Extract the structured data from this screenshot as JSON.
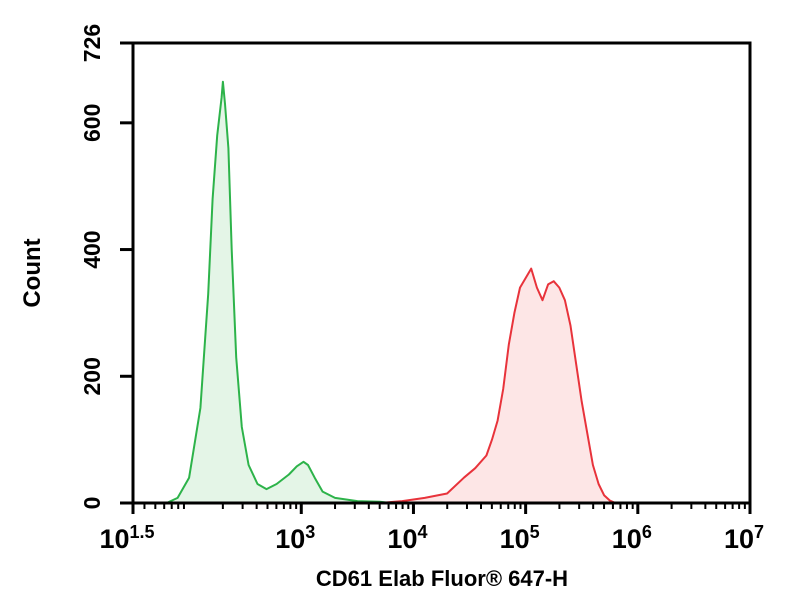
{
  "chart_data": {
    "type": "area",
    "xlabel": "CD61 Elab Fluor® 647-H",
    "ylabel": "Count",
    "x_scale": "log",
    "xlim": [
      31.62,
      10000000
    ],
    "ylim": [
      0,
      726
    ],
    "y_ticks": [
      "0",
      "200",
      "400",
      "600",
      "726"
    ],
    "x_ticks": [
      {
        "base": "10",
        "exp": "1.5"
      },
      {
        "base": "10",
        "exp": "3"
      },
      {
        "base": "10",
        "exp": "4"
      },
      {
        "base": "10",
        "exp": "5"
      },
      {
        "base": "10",
        "exp": "6"
      },
      {
        "base": "10",
        "exp": "7"
      }
    ],
    "grid": false,
    "series": [
      {
        "color": "#2db34a",
        "fill": "#e4f5e7",
        "points": [
          [
            63,
            0
          ],
          [
            79,
            8
          ],
          [
            100,
            40
          ],
          [
            126,
            150
          ],
          [
            148,
            330
          ],
          [
            162,
            480
          ],
          [
            178,
            580
          ],
          [
            195,
            640
          ],
          [
            200,
            665
          ],
          [
            209,
            630
          ],
          [
            224,
            560
          ],
          [
            240,
            400
          ],
          [
            263,
            230
          ],
          [
            295,
            120
          ],
          [
            339,
            60
          ],
          [
            407,
            30
          ],
          [
            490,
            22
          ],
          [
            603,
            30
          ],
          [
            776,
            45
          ],
          [
            912,
            58
          ],
          [
            1047,
            65
          ],
          [
            1148,
            60
          ],
          [
            1318,
            40
          ],
          [
            1549,
            18
          ],
          [
            2000,
            8
          ],
          [
            3162,
            3
          ],
          [
            5012,
            2
          ],
          [
            6310,
            0
          ]
        ]
      },
      {
        "color": "#e8333b",
        "fill": "#fde6e6",
        "points": [
          [
            5012,
            0
          ],
          [
            7943,
            3
          ],
          [
            12589,
            8
          ],
          [
            19953,
            15
          ],
          [
            28184,
            40
          ],
          [
            35481,
            55
          ],
          [
            44668,
            75
          ],
          [
            50119,
            100
          ],
          [
            56234,
            130
          ],
          [
            63096,
            180
          ],
          [
            70795,
            250
          ],
          [
            79433,
            300
          ],
          [
            89125,
            340
          ],
          [
            100000,
            355
          ],
          [
            112202,
            370
          ],
          [
            125893,
            340
          ],
          [
            141254,
            320
          ],
          [
            158489,
            345
          ],
          [
            177828,
            350
          ],
          [
            199526,
            340
          ],
          [
            223872,
            320
          ],
          [
            251189,
            280
          ],
          [
            281838,
            220
          ],
          [
            316228,
            160
          ],
          [
            354813,
            110
          ],
          [
            398107,
            60
          ],
          [
            446684,
            30
          ],
          [
            501187,
            12
          ],
          [
            562341,
            4
          ],
          [
            630957,
            0
          ]
        ]
      }
    ]
  }
}
